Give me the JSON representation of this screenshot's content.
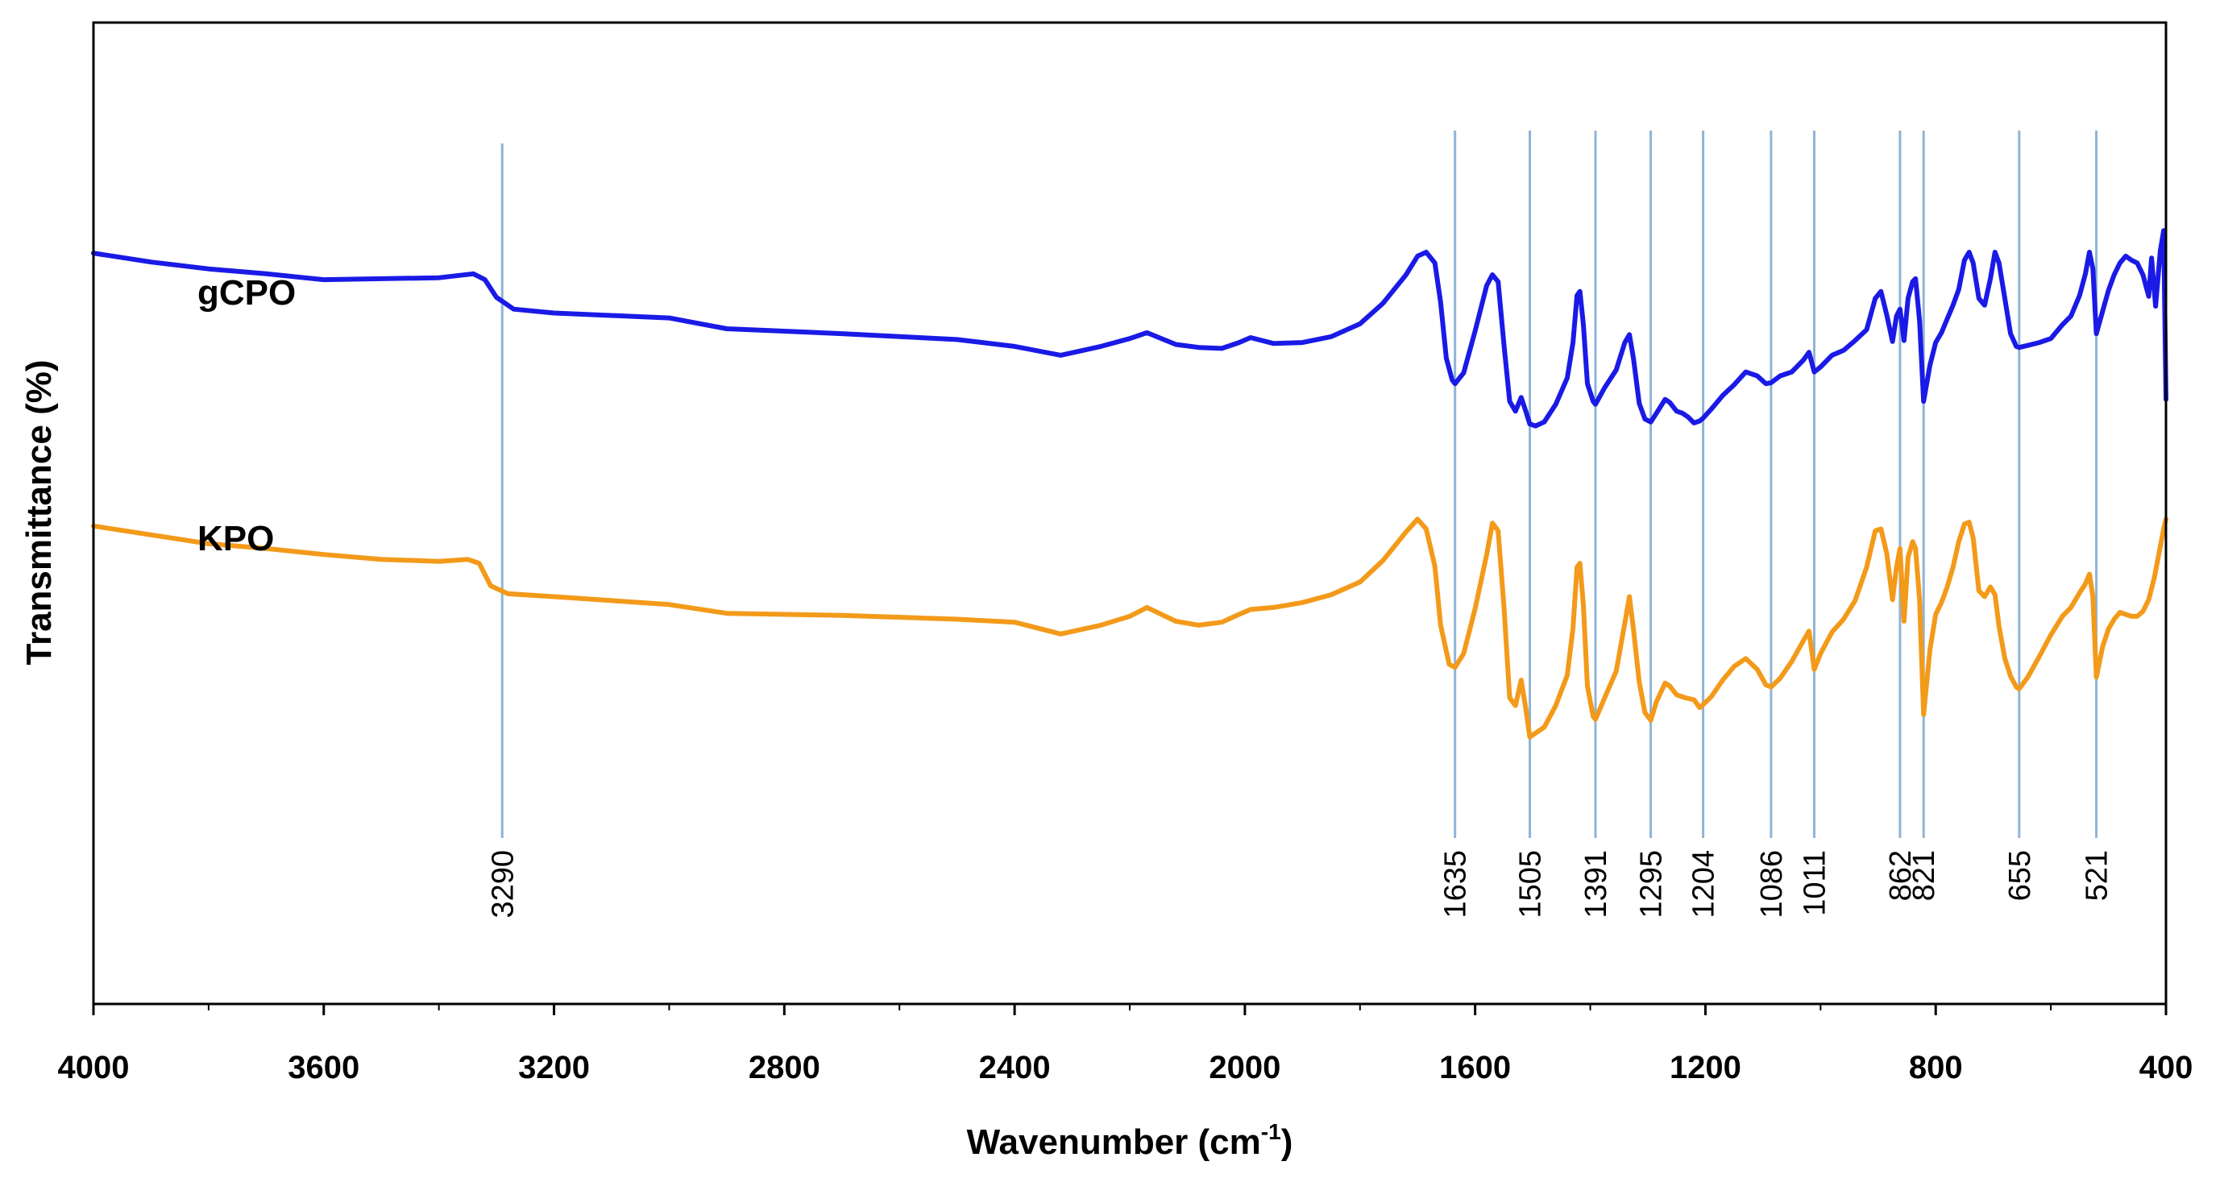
{
  "chart_data": {
    "type": "line",
    "title": "",
    "xlabel": "Wavenumber (cm",
    "xlabel_sup": "-1",
    "xlabel_tail": ")",
    "ylabel": "Transmittance (%)",
    "xlim": [
      4000,
      400
    ],
    "ylim": [
      0,
      100
    ],
    "x_ticks": [
      "4000",
      "3600",
      "3200",
      "2800",
      "2400",
      "2000",
      "1600",
      "1200",
      "800",
      "400"
    ],
    "x_tick_values": [
      4000,
      3600,
      3200,
      2800,
      2400,
      2000,
      1600,
      1200,
      800,
      400
    ],
    "peaks": [
      "3290",
      "1635",
      "1505",
      "1391",
      "1295",
      "1204",
      "1086",
      "1011",
      "862",
      "821",
      "655",
      "521"
    ],
    "peak_values": [
      3290,
      1635,
      1505,
      1391,
      1295,
      1204,
      1086,
      1011,
      862,
      821,
      655,
      521
    ],
    "series": [
      {
        "name": "gCPO",
        "color": "#1a1ae6",
        "points": [
          [
            4000,
            76.5
          ],
          [
            3900,
            75.6
          ],
          [
            3800,
            74.9
          ],
          [
            3700,
            74.4
          ],
          [
            3600,
            73.8
          ],
          [
            3500,
            73.9
          ],
          [
            3400,
            74
          ],
          [
            3340,
            74.4
          ],
          [
            3320,
            73.8
          ],
          [
            3300,
            72
          ],
          [
            3270,
            70.8
          ],
          [
            3200,
            70.4
          ],
          [
            3000,
            69.9
          ],
          [
            2900,
            68.8
          ],
          [
            2700,
            68.3
          ],
          [
            2500,
            67.7
          ],
          [
            2400,
            67
          ],
          [
            2320,
            66.1
          ],
          [
            2250,
            67
          ],
          [
            2200,
            67.8
          ],
          [
            2170,
            68.4
          ],
          [
            2120,
            67.2
          ],
          [
            2080,
            66.9
          ],
          [
            2040,
            66.8
          ],
          [
            2010,
            67.4
          ],
          [
            1990,
            67.9
          ],
          [
            1950,
            67.3
          ],
          [
            1900,
            67.4
          ],
          [
            1850,
            68
          ],
          [
            1800,
            69.3
          ],
          [
            1760,
            71.4
          ],
          [
            1720,
            74.3
          ],
          [
            1700,
            76.2
          ],
          [
            1685,
            76.6
          ],
          [
            1670,
            75.5
          ],
          [
            1660,
            71.5
          ],
          [
            1650,
            65.8
          ],
          [
            1640,
            63.6
          ],
          [
            1635,
            63.2
          ],
          [
            1620,
            64.3
          ],
          [
            1600,
            68.6
          ],
          [
            1580,
            73.2
          ],
          [
            1570,
            74.3
          ],
          [
            1560,
            73.6
          ],
          [
            1550,
            67.2
          ],
          [
            1540,
            61.4
          ],
          [
            1530,
            60.4
          ],
          [
            1520,
            61.8
          ],
          [
            1512,
            60.4
          ],
          [
            1505,
            59.1
          ],
          [
            1495,
            58.9
          ],
          [
            1480,
            59.3
          ],
          [
            1460,
            61.1
          ],
          [
            1440,
            63.8
          ],
          [
            1430,
            67.4
          ],
          [
            1423,
            72.2
          ],
          [
            1418,
            72.6
          ],
          [
            1412,
            69.2
          ],
          [
            1405,
            63.2
          ],
          [
            1395,
            61.4
          ],
          [
            1391,
            61.1
          ],
          [
            1375,
            62.8
          ],
          [
            1355,
            64.6
          ],
          [
            1340,
            67.4
          ],
          [
            1332,
            68.2
          ],
          [
            1325,
            65.8
          ],
          [
            1315,
            61.2
          ],
          [
            1305,
            59.6
          ],
          [
            1295,
            59.3
          ],
          [
            1285,
            60.2
          ],
          [
            1270,
            61.6
          ],
          [
            1262,
            61.3
          ],
          [
            1250,
            60.4
          ],
          [
            1240,
            60.2
          ],
          [
            1230,
            59.8
          ],
          [
            1220,
            59.2
          ],
          [
            1210,
            59.4
          ],
          [
            1204,
            59.7
          ],
          [
            1190,
            60.6
          ],
          [
            1170,
            62
          ],
          [
            1150,
            63.1
          ],
          [
            1130,
            64.4
          ],
          [
            1110,
            64
          ],
          [
            1095,
            63.2
          ],
          [
            1086,
            63.3
          ],
          [
            1070,
            64
          ],
          [
            1050,
            64.4
          ],
          [
            1030,
            65.6
          ],
          [
            1020,
            66.4
          ],
          [
            1011,
            64.4
          ],
          [
            1000,
            64.9
          ],
          [
            980,
            66.1
          ],
          [
            960,
            66.6
          ],
          [
            940,
            67.6
          ],
          [
            920,
            68.7
          ],
          [
            905,
            71.9
          ],
          [
            895,
            72.6
          ],
          [
            885,
            70.2
          ],
          [
            875,
            67.5
          ],
          [
            868,
            70.1
          ],
          [
            862,
            70.8
          ],
          [
            855,
            67.6
          ],
          [
            848,
            71.9
          ],
          [
            840,
            73.6
          ],
          [
            835,
            73.9
          ],
          [
            828,
            69.6
          ],
          [
            821,
            61.4
          ],
          [
            810,
            65.1
          ],
          [
            800,
            67.4
          ],
          [
            790,
            68.4
          ],
          [
            780,
            69.8
          ],
          [
            770,
            71.2
          ],
          [
            760,
            72.8
          ],
          [
            750,
            75.8
          ],
          [
            742,
            76.6
          ],
          [
            735,
            75.5
          ],
          [
            725,
            71.9
          ],
          [
            715,
            71.2
          ],
          [
            705,
            73.9
          ],
          [
            697,
            76.6
          ],
          [
            690,
            75.5
          ],
          [
            680,
            71.9
          ],
          [
            670,
            68.3
          ],
          [
            660,
            67
          ],
          [
            655,
            66.9
          ],
          [
            640,
            67.1
          ],
          [
            620,
            67.4
          ],
          [
            600,
            67.8
          ],
          [
            580,
            69.2
          ],
          [
            565,
            70.1
          ],
          [
            550,
            72.2
          ],
          [
            540,
            74.4
          ],
          [
            533,
            76.6
          ],
          [
            527,
            74.9
          ],
          [
            521,
            68.3
          ],
          [
            510,
            70.6
          ],
          [
            500,
            72.7
          ],
          [
            490,
            74.3
          ],
          [
            480,
            75.5
          ],
          [
            470,
            76.2
          ],
          [
            460,
            75.8
          ],
          [
            450,
            75.5
          ],
          [
            440,
            74.3
          ],
          [
            430,
            72.1
          ],
          [
            425,
            76
          ],
          [
            418,
            71.1
          ],
          [
            410,
            76.7
          ],
          [
            404,
            78.8
          ],
          [
            400,
            61.6
          ]
        ]
      },
      {
        "name": "KPO",
        "color": "#f39a1a",
        "points": [
          [
            4000,
            48.7
          ],
          [
            3900,
            47.8
          ],
          [
            3800,
            46.9
          ],
          [
            3700,
            46.4
          ],
          [
            3600,
            45.8
          ],
          [
            3500,
            45.3
          ],
          [
            3400,
            45.1
          ],
          [
            3350,
            45.3
          ],
          [
            3330,
            44.9
          ],
          [
            3310,
            42.6
          ],
          [
            3280,
            41.8
          ],
          [
            3200,
            41.5
          ],
          [
            3000,
            40.7
          ],
          [
            2900,
            39.8
          ],
          [
            2700,
            39.6
          ],
          [
            2500,
            39.2
          ],
          [
            2400,
            38.9
          ],
          [
            2320,
            37.7
          ],
          [
            2250,
            38.6
          ],
          [
            2200,
            39.5
          ],
          [
            2170,
            40.4
          ],
          [
            2120,
            39
          ],
          [
            2080,
            38.6
          ],
          [
            2040,
            38.9
          ],
          [
            2010,
            39.7
          ],
          [
            1990,
            40.2
          ],
          [
            1950,
            40.4
          ],
          [
            1900,
            40.9
          ],
          [
            1850,
            41.7
          ],
          [
            1800,
            43
          ],
          [
            1760,
            45.2
          ],
          [
            1720,
            48.1
          ],
          [
            1700,
            49.4
          ],
          [
            1685,
            48.4
          ],
          [
            1670,
            44.6
          ],
          [
            1660,
            38.6
          ],
          [
            1645,
            34.6
          ],
          [
            1635,
            34.3
          ],
          [
            1620,
            35.7
          ],
          [
            1600,
            40.3
          ],
          [
            1580,
            45.8
          ],
          [
            1570,
            49
          ],
          [
            1560,
            48.2
          ],
          [
            1550,
            40.5
          ],
          [
            1540,
            31.2
          ],
          [
            1530,
            30.4
          ],
          [
            1520,
            33
          ],
          [
            1512,
            30.1
          ],
          [
            1505,
            27.2
          ],
          [
            1495,
            27.6
          ],
          [
            1480,
            28.2
          ],
          [
            1460,
            30.4
          ],
          [
            1440,
            33.5
          ],
          [
            1430,
            38.3
          ],
          [
            1423,
            44.5
          ],
          [
            1418,
            44.9
          ],
          [
            1412,
            40.6
          ],
          [
            1405,
            32.4
          ],
          [
            1395,
            29.3
          ],
          [
            1391,
            29
          ],
          [
            1375,
            31.2
          ],
          [
            1355,
            33.9
          ],
          [
            1340,
            38.8
          ],
          [
            1332,
            41.5
          ],
          [
            1325,
            38.2
          ],
          [
            1315,
            32.8
          ],
          [
            1305,
            29.7
          ],
          [
            1295,
            28.9
          ],
          [
            1285,
            30.8
          ],
          [
            1270,
            32.7
          ],
          [
            1262,
            32.4
          ],
          [
            1250,
            31.5
          ],
          [
            1235,
            31.2
          ],
          [
            1220,
            31
          ],
          [
            1210,
            30.2
          ],
          [
            1204,
            30.5
          ],
          [
            1190,
            31.3
          ],
          [
            1170,
            33
          ],
          [
            1150,
            34.4
          ],
          [
            1130,
            35.2
          ],
          [
            1110,
            34.1
          ],
          [
            1095,
            32.5
          ],
          [
            1086,
            32.3
          ],
          [
            1070,
            33.2
          ],
          [
            1050,
            34.9
          ],
          [
            1030,
            37
          ],
          [
            1020,
            38
          ],
          [
            1011,
            34.1
          ],
          [
            1000,
            35.7
          ],
          [
            980,
            37.9
          ],
          [
            960,
            39.2
          ],
          [
            940,
            41.1
          ],
          [
            920,
            44.5
          ],
          [
            905,
            48.2
          ],
          [
            895,
            48.4
          ],
          [
            885,
            45.9
          ],
          [
            875,
            41.2
          ],
          [
            868,
            44.5
          ],
          [
            862,
            46.4
          ],
          [
            855,
            39
          ],
          [
            848,
            45.5
          ],
          [
            840,
            47.1
          ],
          [
            835,
            46.4
          ],
          [
            828,
            41.2
          ],
          [
            821,
            29.5
          ],
          [
            810,
            36.1
          ],
          [
            800,
            39.7
          ],
          [
            790,
            40.9
          ],
          [
            780,
            42.5
          ],
          [
            770,
            44.5
          ],
          [
            760,
            47.1
          ],
          [
            750,
            48.9
          ],
          [
            742,
            49.1
          ],
          [
            735,
            47.5
          ],
          [
            725,
            42.1
          ],
          [
            715,
            41.5
          ],
          [
            705,
            42.5
          ],
          [
            697,
            41.7
          ],
          [
            690,
            38.5
          ],
          [
            680,
            35.2
          ],
          [
            670,
            33.4
          ],
          [
            660,
            32.3
          ],
          [
            655,
            32.1
          ],
          [
            640,
            33.3
          ],
          [
            620,
            35.4
          ],
          [
            600,
            37.6
          ],
          [
            580,
            39.5
          ],
          [
            565,
            40.4
          ],
          [
            550,
            41.9
          ],
          [
            540,
            42.8
          ],
          [
            533,
            43.8
          ],
          [
            527,
            41.5
          ],
          [
            521,
            33.3
          ],
          [
            510,
            36.4
          ],
          [
            500,
            38.2
          ],
          [
            490,
            39.2
          ],
          [
            480,
            39.9
          ],
          [
            470,
            39.7
          ],
          [
            460,
            39.5
          ],
          [
            450,
            39.5
          ],
          [
            440,
            40
          ],
          [
            430,
            41.2
          ],
          [
            420,
            43.5
          ],
          [
            410,
            46.6
          ],
          [
            404,
            48.4
          ],
          [
            400,
            49.4
          ]
        ]
      }
    ]
  }
}
